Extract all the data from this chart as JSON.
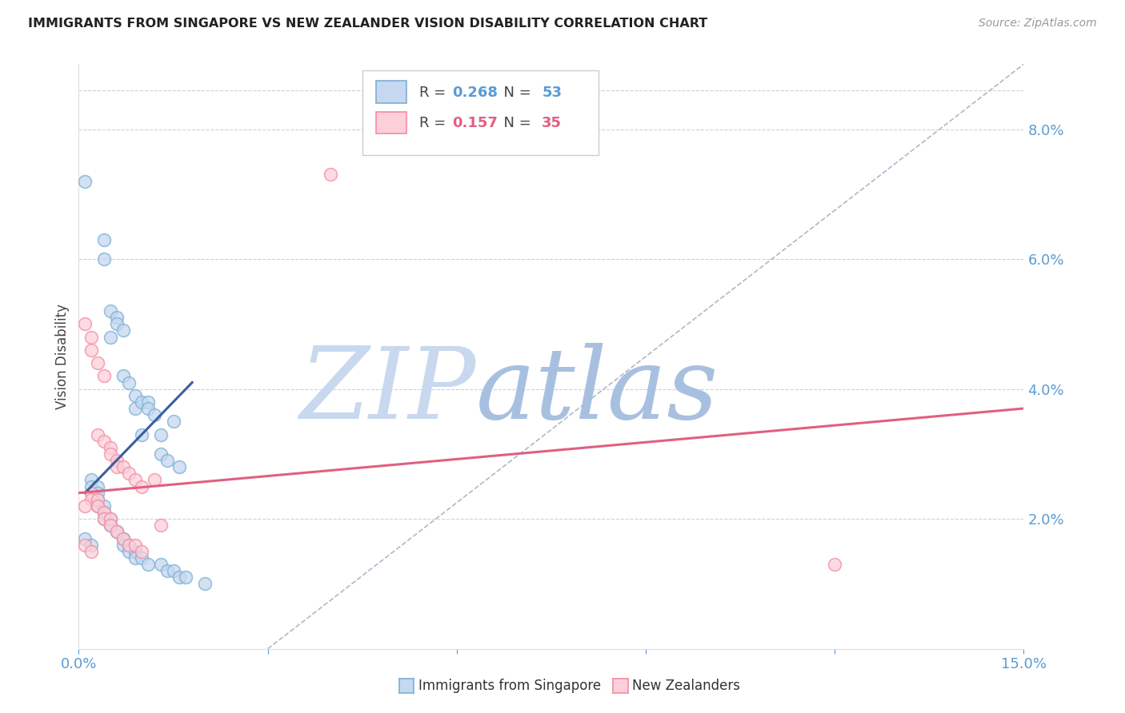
{
  "title": "IMMIGRANTS FROM SINGAPORE VS NEW ZEALANDER VISION DISABILITY CORRELATION CHART",
  "source": "Source: ZipAtlas.com",
  "ylabel": "Vision Disability",
  "xlim": [
    0.0,
    0.15
  ],
  "ylim": [
    0.0,
    0.09
  ],
  "xtick_positions": [
    0.0,
    0.03,
    0.06,
    0.09,
    0.12,
    0.15
  ],
  "xtick_labels": [
    "0.0%",
    "",
    "",
    "",
    "",
    "15.0%"
  ],
  "yticks_right": [
    0.02,
    0.04,
    0.06,
    0.08
  ],
  "ytick_labels_right": [
    "2.0%",
    "4.0%",
    "6.0%",
    "8.0%"
  ],
  "legend_blue": {
    "R": "0.268",
    "N": "53"
  },
  "legend_pink": {
    "R": "0.157",
    "N": "35"
  },
  "legend_label_blue": "Immigrants from Singapore",
  "legend_label_pink": "New Zealanders",
  "blue_scatter": [
    [
      0.001,
      0.072
    ],
    [
      0.004,
      0.063
    ],
    [
      0.004,
      0.06
    ],
    [
      0.005,
      0.052
    ],
    [
      0.006,
      0.051
    ],
    [
      0.006,
      0.05
    ],
    [
      0.007,
      0.049
    ],
    [
      0.005,
      0.048
    ],
    [
      0.007,
      0.042
    ],
    [
      0.008,
      0.041
    ],
    [
      0.009,
      0.039
    ],
    [
      0.009,
      0.037
    ],
    [
      0.01,
      0.038
    ],
    [
      0.011,
      0.038
    ],
    [
      0.011,
      0.037
    ],
    [
      0.012,
      0.036
    ],
    [
      0.013,
      0.033
    ],
    [
      0.01,
      0.033
    ],
    [
      0.013,
      0.03
    ],
    [
      0.014,
      0.029
    ],
    [
      0.015,
      0.035
    ],
    [
      0.016,
      0.028
    ],
    [
      0.002,
      0.026
    ],
    [
      0.002,
      0.025
    ],
    [
      0.003,
      0.025
    ],
    [
      0.003,
      0.024
    ],
    [
      0.003,
      0.023
    ],
    [
      0.003,
      0.022
    ],
    [
      0.004,
      0.022
    ],
    [
      0.004,
      0.021
    ],
    [
      0.004,
      0.02
    ],
    [
      0.005,
      0.02
    ],
    [
      0.005,
      0.019
    ],
    [
      0.005,
      0.019
    ],
    [
      0.006,
      0.018
    ],
    [
      0.006,
      0.018
    ],
    [
      0.007,
      0.017
    ],
    [
      0.007,
      0.017
    ],
    [
      0.007,
      0.016
    ],
    [
      0.008,
      0.016
    ],
    [
      0.008,
      0.015
    ],
    [
      0.009,
      0.015
    ],
    [
      0.009,
      0.014
    ],
    [
      0.01,
      0.014
    ],
    [
      0.011,
      0.013
    ],
    [
      0.013,
      0.013
    ],
    [
      0.014,
      0.012
    ],
    [
      0.015,
      0.012
    ],
    [
      0.016,
      0.011
    ],
    [
      0.017,
      0.011
    ],
    [
      0.02,
      0.01
    ],
    [
      0.001,
      0.017
    ],
    [
      0.002,
      0.016
    ]
  ],
  "pink_scatter": [
    [
      0.001,
      0.05
    ],
    [
      0.002,
      0.048
    ],
    [
      0.002,
      0.046
    ],
    [
      0.003,
      0.044
    ],
    [
      0.004,
      0.042
    ],
    [
      0.003,
      0.033
    ],
    [
      0.004,
      0.032
    ],
    [
      0.005,
      0.031
    ],
    [
      0.005,
      0.03
    ],
    [
      0.006,
      0.029
    ],
    [
      0.006,
      0.028
    ],
    [
      0.007,
      0.028
    ],
    [
      0.008,
      0.027
    ],
    [
      0.009,
      0.026
    ],
    [
      0.01,
      0.025
    ],
    [
      0.002,
      0.024
    ],
    [
      0.002,
      0.023
    ],
    [
      0.003,
      0.023
    ],
    [
      0.003,
      0.022
    ],
    [
      0.004,
      0.021
    ],
    [
      0.004,
      0.02
    ],
    [
      0.005,
      0.02
    ],
    [
      0.005,
      0.019
    ],
    [
      0.006,
      0.018
    ],
    [
      0.007,
      0.017
    ],
    [
      0.008,
      0.016
    ],
    [
      0.009,
      0.016
    ],
    [
      0.01,
      0.015
    ],
    [
      0.012,
      0.026
    ],
    [
      0.013,
      0.019
    ],
    [
      0.001,
      0.016
    ],
    [
      0.002,
      0.015
    ],
    [
      0.04,
      0.073
    ],
    [
      0.12,
      0.013
    ],
    [
      0.001,
      0.022
    ]
  ],
  "blue_line_x": [
    0.001,
    0.018
  ],
  "blue_line_y": [
    0.024,
    0.041
  ],
  "pink_line_x": [
    0.0,
    0.15
  ],
  "pink_line_y": [
    0.024,
    0.037
  ],
  "diag_line_x": [
    0.03,
    0.15
  ],
  "diag_line_y": [
    0.0,
    0.09
  ],
  "watermark_zip": "ZIP",
  "watermark_atlas": "atlas",
  "title_color": "#222222",
  "source_color": "#999999",
  "axis_color": "#5b9bd5",
  "scatter_blue_edge": "#7bafd4",
  "scatter_blue_face": "#c5d8f0",
  "scatter_pink_edge": "#f48ca0",
  "scatter_pink_face": "#fbd0da",
  "trend_blue": "#3a5fa0",
  "trend_pink": "#e06080",
  "diag_color": "#b0b8c8",
  "watermark_zip_color": "#c8d8ee",
  "watermark_atlas_color": "#a8c0e0",
  "background": "#ffffff",
  "grid_color": "#d0d0d0",
  "legend_edge_blue": "#7bafd4",
  "legend_face_blue": "#c5d8f0",
  "legend_edge_pink": "#f48ca0",
  "legend_face_pink": "#fbd0da"
}
